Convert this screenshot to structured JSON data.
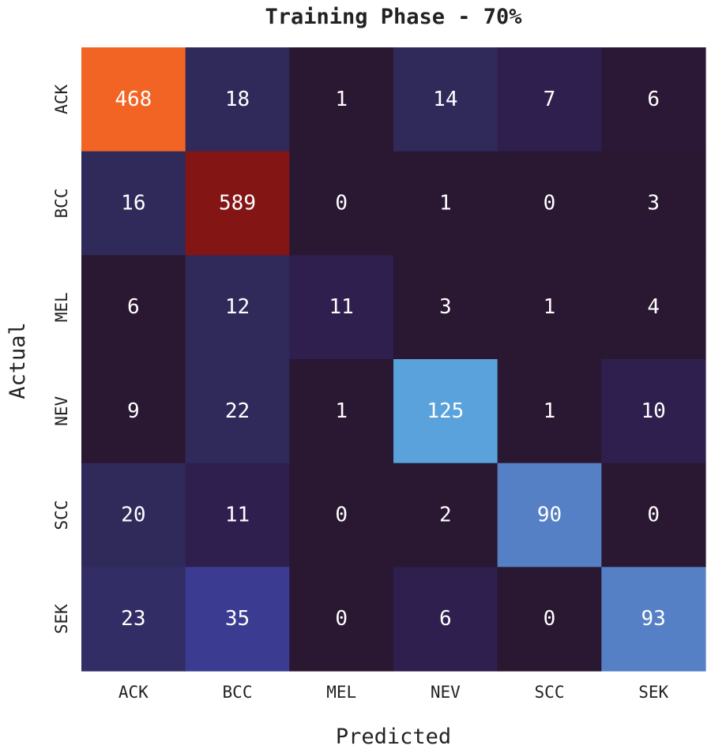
{
  "chart_data": {
    "type": "heatmap",
    "title": "Training Phase - 70%",
    "xlabel": "Predicted",
    "ylabel": "Actual",
    "x_categories": [
      "ACK",
      "BCC",
      "MEL",
      "NEV",
      "SCC",
      "SEK"
    ],
    "y_categories": [
      "ACK",
      "BCC",
      "MEL",
      "NEV",
      "SCC",
      "SEK"
    ],
    "values": [
      [
        468,
        18,
        1,
        14,
        7,
        6
      ],
      [
        16,
        589,
        0,
        1,
        0,
        3
      ],
      [
        6,
        12,
        11,
        3,
        1,
        4
      ],
      [
        9,
        22,
        1,
        125,
        1,
        10
      ],
      [
        20,
        11,
        0,
        2,
        90,
        0
      ],
      [
        23,
        35,
        0,
        6,
        0,
        93
      ]
    ],
    "cell_colors": [
      [
        "#f26424",
        "#302a5a",
        "#2a1732",
        "#302a5a",
        "#2f1f4e",
        "#2b1836"
      ],
      [
        "#302a5a",
        "#831515",
        "#2a1732",
        "#2a1732",
        "#2a1732",
        "#2a1732"
      ],
      [
        "#2a1732",
        "#302a5a",
        "#2f1f4e",
        "#2a1732",
        "#2a1732",
        "#2a1732"
      ],
      [
        "#2a1732",
        "#302a5a",
        "#2a1732",
        "#5aa2dc",
        "#2a1732",
        "#2f1f4e"
      ],
      [
        "#302a5a",
        "#2f1f4e",
        "#2a1732",
        "#2a1732",
        "#5580c6",
        "#2a1732"
      ],
      [
        "#332d66",
        "#3b3b91",
        "#2a1732",
        "#2f1f4e",
        "#2a1732",
        "#5580c6"
      ]
    ],
    "colors": {
      "text": "#222222",
      "cell_text": "#ffffff"
    },
    "colorbar": false
  }
}
